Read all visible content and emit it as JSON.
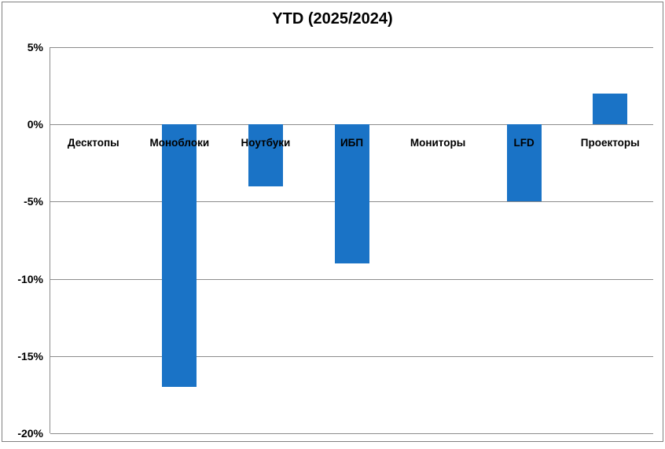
{
  "chart_data": {
    "type": "bar",
    "title": "YTD (2025/2024)",
    "categories": [
      "Десктопы",
      "Моноблоки",
      "Ноутбуки",
      "ИБП",
      "Мониторы",
      "LFD",
      "Проекторы"
    ],
    "values": [
      0,
      -17,
      -4,
      -9,
      0,
      -5,
      2
    ],
    "unit": "%",
    "xlabel": "",
    "ylabel": "",
    "ylim": [
      -20,
      5
    ],
    "yticks": [
      5,
      0,
      -5,
      -10,
      -15,
      -20
    ],
    "ytick_labels": [
      "5%",
      "0%",
      "-5%",
      "-10%",
      "-15%",
      "-20%"
    ],
    "grid": true,
    "legend_position": "none",
    "colors": {
      "bar": "#1A73C6",
      "gridline": "#8C8C8C",
      "frame_border": "#808080",
      "text": "#000000",
      "background": "#FFFFFF"
    }
  }
}
